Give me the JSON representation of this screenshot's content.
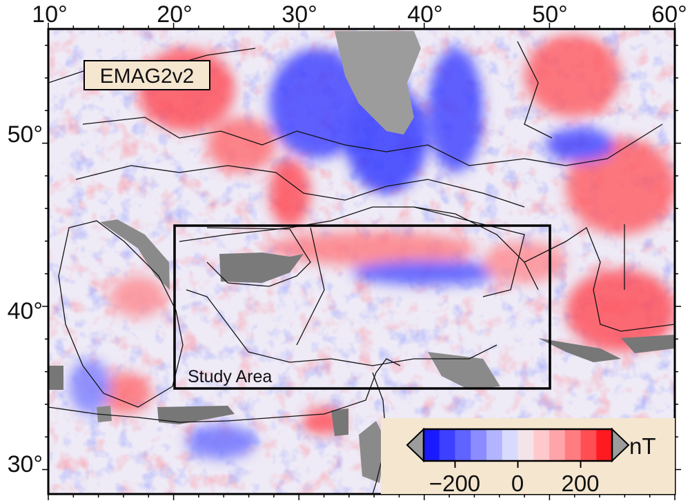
{
  "map": {
    "dataset_label": "EMAG2v2",
    "study_area_label": "Study Area",
    "lon_ticks": [
      "10°",
      "20°",
      "30°",
      "40°",
      "50°",
      "60°"
    ],
    "lat_ticks": [
      "50°",
      "40°",
      "30°"
    ],
    "extent": {
      "lon_min": 10,
      "lon_max": 60,
      "lat_min": 28.5,
      "lat_max": 57
    },
    "study_area": {
      "lon_min": 20,
      "lon_max": 50,
      "lat_min": 35,
      "lat_max": 45
    }
  },
  "colorbar": {
    "unit": "nT",
    "ticks": [
      "−200",
      "0",
      "200"
    ],
    "tick_values": [
      -200,
      0,
      200
    ],
    "range": [
      -300,
      300
    ],
    "colors": [
      "#1a1aff",
      "#3d40ff",
      "#6063ff",
      "#8a8cff",
      "#b2b4ff",
      "#d8daff",
      "#f3e4ea",
      "#ffc9cc",
      "#ffa5a9",
      "#ff7c81",
      "#ff4e54",
      "#ff1a22"
    ],
    "low_color": "#0000cc",
    "high_color": "#dd0000",
    "nodata_color": "#a0a0a0"
  }
}
